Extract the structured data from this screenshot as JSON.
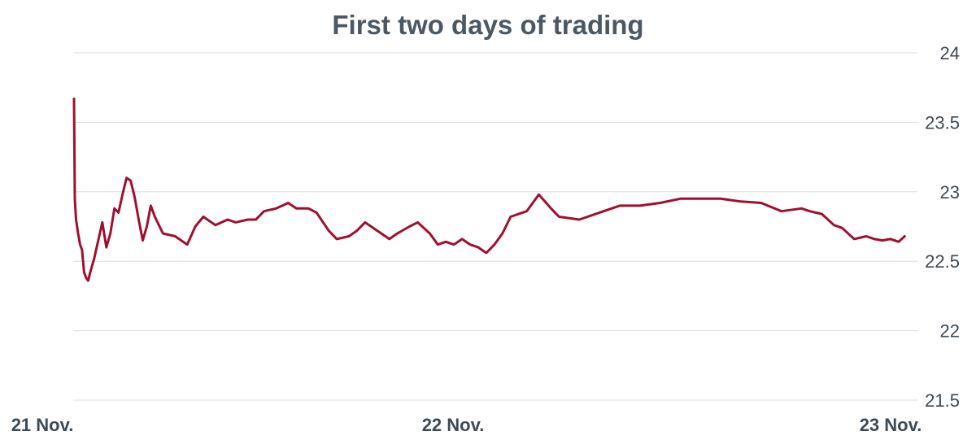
{
  "chart_data": {
    "type": "line",
    "title": "First two days of trading",
    "xlabel": "",
    "ylabel": "",
    "y_axis_side": "right",
    "ylim": [
      21.5,
      24
    ],
    "yticks": [
      21.5,
      22,
      22.5,
      23,
      23.5,
      24
    ],
    "ytick_labels": [
      "21.5",
      "22",
      "22.5",
      "23",
      "23.5",
      "24"
    ],
    "x_domain": [
      "21 Nov.",
      "23 Nov."
    ],
    "xticks": [
      {
        "label": "21 Nov.",
        "day": 0
      },
      {
        "label": "22 Nov.",
        "day": 1
      },
      {
        "label": "23 Nov.",
        "day": 2
      }
    ],
    "grid": true,
    "line_color": "#a0102e",
    "series": [
      {
        "x": [
          0.0,
          0.002,
          0.005,
          0.01,
          0.015,
          0.02,
          0.025,
          0.03,
          0.035,
          0.04,
          0.05,
          0.06,
          0.07,
          0.08,
          0.09,
          0.1,
          0.11,
          0.12,
          0.13,
          0.14,
          0.15,
          0.16,
          0.17,
          0.18,
          0.19,
          0.2,
          0.22,
          0.25,
          0.28,
          0.3,
          0.32,
          0.35,
          0.38,
          0.4,
          0.43,
          0.45,
          0.47,
          0.5,
          0.53,
          0.55,
          0.58,
          0.6,
          0.63,
          0.65,
          0.68,
          0.7,
          0.72,
          0.75,
          0.78,
          0.8,
          0.83,
          0.85,
          0.88,
          0.9,
          0.92,
          0.94,
          0.96,
          0.98,
          1.0,
          1.02,
          1.04,
          1.06,
          1.08,
          1.1,
          1.12,
          1.15,
          1.18,
          1.2,
          1.25,
          1.3,
          1.35,
          1.4,
          1.45,
          1.5,
          1.55,
          1.6,
          1.65,
          1.7,
          1.75,
          1.8,
          1.82,
          1.85,
          1.88,
          1.9,
          1.93,
          1.96,
          1.98,
          2.0,
          2.02,
          2.04,
          2.055
        ],
        "y": [
          23.67,
          22.95,
          22.8,
          22.7,
          22.62,
          22.58,
          22.42,
          22.38,
          22.36,
          22.42,
          22.52,
          22.65,
          22.78,
          22.6,
          22.7,
          22.88,
          22.85,
          22.98,
          23.1,
          23.08,
          22.96,
          22.8,
          22.65,
          22.75,
          22.9,
          22.82,
          22.7,
          22.68,
          22.62,
          22.75,
          22.82,
          22.76,
          22.8,
          22.78,
          22.8,
          22.8,
          22.86,
          22.88,
          22.92,
          22.88,
          22.88,
          22.85,
          22.72,
          22.66,
          22.68,
          22.72,
          22.78,
          22.72,
          22.66,
          22.7,
          22.75,
          22.78,
          22.7,
          22.62,
          22.64,
          22.62,
          22.66,
          22.62,
          22.6,
          22.56,
          22.62,
          22.7,
          22.82,
          22.84,
          22.86,
          22.98,
          22.88,
          22.82,
          22.8,
          22.85,
          22.9,
          22.9,
          22.92,
          22.95,
          22.95,
          22.95,
          22.93,
          22.92,
          22.86,
          22.88,
          22.86,
          22.84,
          22.76,
          22.74,
          22.66,
          22.68,
          22.66,
          22.65,
          22.66,
          22.64,
          22.68
        ]
      }
    ]
  }
}
